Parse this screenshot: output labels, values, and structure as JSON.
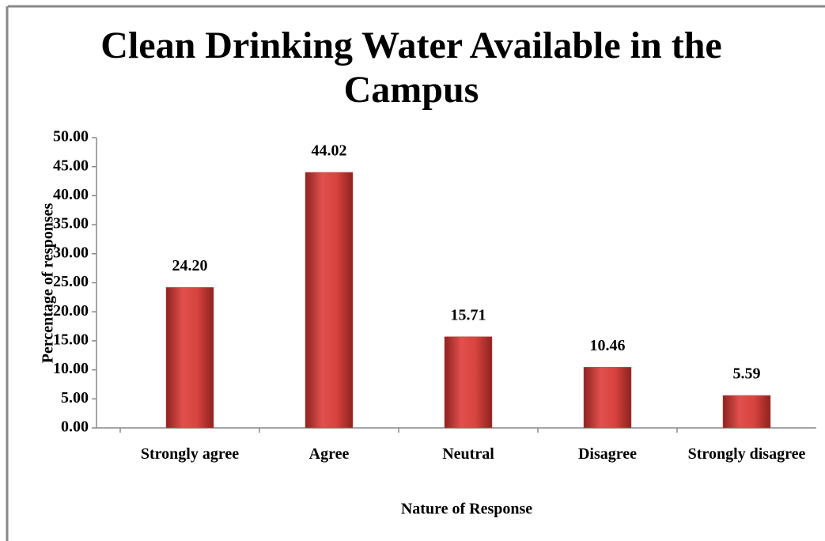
{
  "chart_data": {
    "type": "bar",
    "title": "Clean Drinking Water Available in the Campus",
    "x_label": "Nature of Response",
    "y_label": "Percentage of responses",
    "categories": [
      "Strongly agree",
      "Agree",
      "Neutral",
      "Disagree",
      "Strongly disagree"
    ],
    "values": [
      24.2,
      44.02,
      15.71,
      10.46,
      5.59
    ],
    "value_labels": [
      "24.20",
      "44.02",
      "15.71",
      "10.46",
      "5.59"
    ],
    "color": "#c0504d",
    "ylim": [
      0,
      50
    ],
    "yticks": [
      {
        "value": 0,
        "label": "0.00"
      },
      {
        "value": 5,
        "label": "5.00"
      },
      {
        "value": 10,
        "label": "10.00"
      },
      {
        "value": 15,
        "label": "15.00"
      },
      {
        "value": 20,
        "label": "20.00"
      },
      {
        "value": 25,
        "label": "25.00"
      },
      {
        "value": 30,
        "label": "30.00"
      },
      {
        "value": 35,
        "label": "35.00"
      },
      {
        "value": 40,
        "label": "40.00"
      },
      {
        "value": 45,
        "label": "45.00"
      },
      {
        "value": 50,
        "label": "50.00"
      }
    ]
  }
}
